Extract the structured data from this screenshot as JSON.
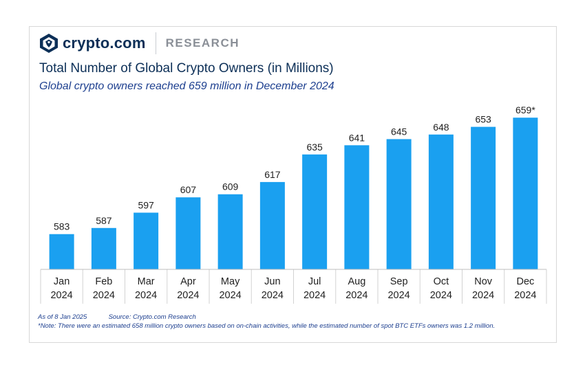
{
  "header": {
    "brand": "crypto.com",
    "section": "RESEARCH"
  },
  "colors": {
    "bar": "#1aa0f0",
    "title": "#0c2f57",
    "subtitle": "#1d3f8f",
    "label": "#1f1f1f"
  },
  "chart_data": {
    "type": "bar",
    "title": "Total Number of Global Crypto Owners (in Millions)",
    "subtitle": "Global crypto owners reached 659 million in December 2024",
    "categories": [
      [
        "Jan",
        "2024"
      ],
      [
        "Feb",
        "2024"
      ],
      [
        "Mar",
        "2024"
      ],
      [
        "Apr",
        "2024"
      ],
      [
        "May",
        "2024"
      ],
      [
        "Jun",
        "2024"
      ],
      [
        "Jul",
        "2024"
      ],
      [
        "Aug",
        "2024"
      ],
      [
        "Sep",
        "2024"
      ],
      [
        "Oct",
        "2024"
      ],
      [
        "Nov",
        "2024"
      ],
      [
        "Dec",
        "2024"
      ]
    ],
    "values": [
      583,
      587,
      597,
      607,
      609,
      617,
      635,
      641,
      645,
      648,
      653,
      659
    ],
    "data_labels": [
      "583",
      "587",
      "597",
      "607",
      "609",
      "617",
      "635",
      "641",
      "645",
      "648",
      "653",
      "659*"
    ],
    "xlabel": "",
    "ylabel": "",
    "ylim": [
      560,
      660
    ],
    "grid": false,
    "legend": "none"
  },
  "footer": {
    "as_of": "As of 8 Jan 2025",
    "source": "Source: Crypto.com Research",
    "note": "*Note: There were an estimated 658 million crypto owners based on on-chain activities, while the estimated number of spot BTC ETFs owners was 1.2 million."
  }
}
